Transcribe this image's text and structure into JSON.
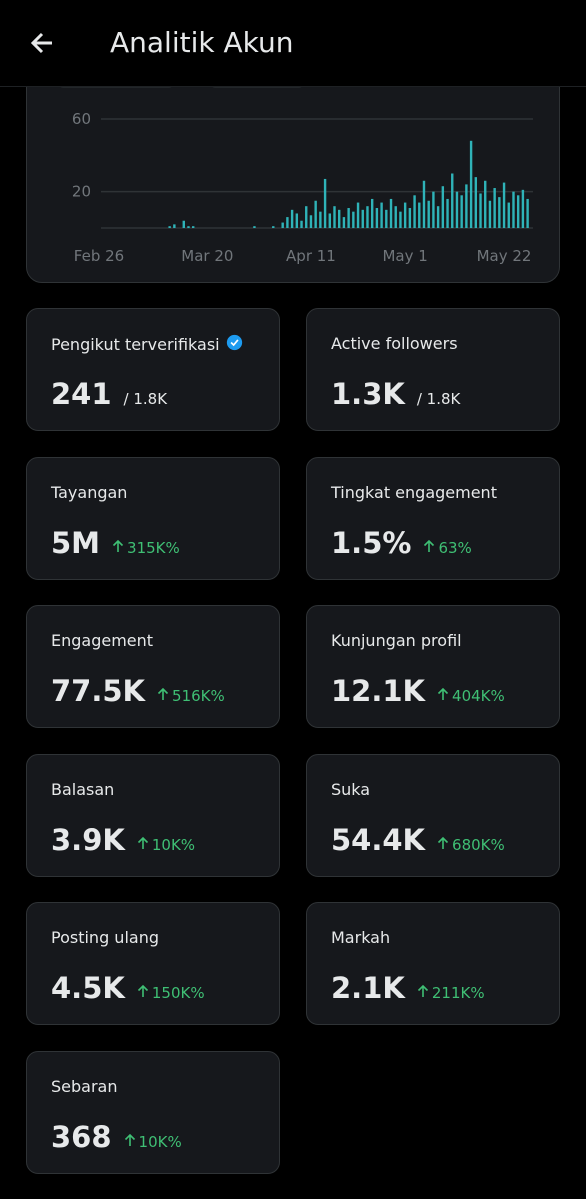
{
  "header": {
    "title": "Analitik Akun"
  },
  "chart_data": {
    "type": "bar",
    "categories": [
      "Feb 26",
      null,
      null,
      null,
      null,
      null,
      null,
      null,
      null,
      null,
      null,
      null,
      null,
      null,
      null,
      null,
      null,
      null,
      null,
      null,
      null,
      null,
      null,
      "Mar 20",
      null,
      null,
      null,
      null,
      null,
      null,
      null,
      null,
      null,
      null,
      null,
      null,
      null,
      null,
      null,
      null,
      null,
      null,
      null,
      null,
      null,
      "Apr 11",
      null,
      null,
      null,
      null,
      null,
      null,
      null,
      null,
      null,
      null,
      null,
      null,
      null,
      null,
      null,
      null,
      null,
      null,
      null,
      "May 1",
      null,
      null,
      null,
      null,
      null,
      null,
      null,
      null,
      null,
      null,
      null,
      null,
      null,
      null,
      null,
      null,
      null,
      null,
      null,
      null,
      "May 22",
      null,
      null,
      null,
      null,
      null
    ],
    "values": [
      0,
      0,
      0,
      0,
      0,
      0,
      0,
      0,
      0,
      0,
      0,
      0,
      0,
      0,
      0,
      1,
      2,
      0,
      4,
      1,
      1,
      0,
      0,
      0,
      0,
      0,
      0,
      0,
      0,
      0,
      0,
      0,
      0,
      1,
      0,
      0,
      0,
      1,
      0,
      3,
      6,
      10,
      8,
      4,
      12,
      7,
      15,
      9,
      27,
      8,
      12,
      10,
      6,
      11,
      9,
      14,
      10,
      12,
      16,
      11,
      14,
      10,
      16,
      12,
      9,
      14,
      11,
      18,
      14,
      26,
      15,
      20,
      12,
      23,
      16,
      30,
      20,
      18,
      24,
      48,
      28,
      19,
      26,
      15,
      22,
      17,
      25,
      14,
      20,
      18,
      21,
      16
    ],
    "color": "#2fb3b8",
    "ylim": [
      0,
      60
    ],
    "yticks": [
      20,
      60
    ],
    "grid": true
  },
  "cards": [
    {
      "label": "Pengikut terverifikasi",
      "value": "241",
      "secondary": "/ 1.8K",
      "verified": true
    },
    {
      "label": "Active followers",
      "value": "1.3K",
      "secondary": "/ 1.8K"
    },
    {
      "label": "Tayangan",
      "value": "5M",
      "change": "315K%"
    },
    {
      "label": "Tingkat engagement",
      "value": "1.5%",
      "change": "63%"
    },
    {
      "label": "Engagement",
      "value": "77.5K",
      "change": "516K%"
    },
    {
      "label": "Kunjungan profil",
      "value": "12.1K",
      "change": "404K%"
    },
    {
      "label": "Balasan",
      "value": "3.9K",
      "change": "10K%"
    },
    {
      "label": "Suka",
      "value": "54.4K",
      "change": "680K%"
    },
    {
      "label": "Posting ulang",
      "value": "4.5K",
      "change": "150K%"
    },
    {
      "label": "Markah",
      "value": "2.1K",
      "change": "211K%"
    },
    {
      "label": "Sebaran",
      "value": "368",
      "change": "10K%"
    }
  ]
}
